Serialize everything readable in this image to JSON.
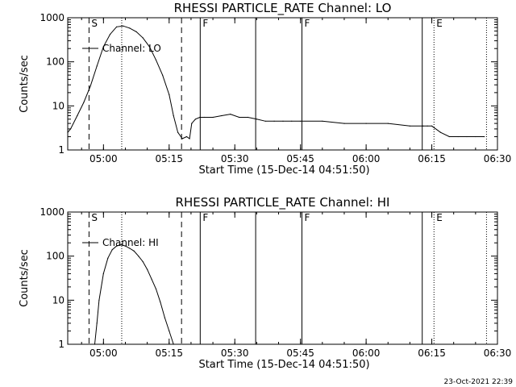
{
  "chart_data": [
    {
      "type": "line",
      "title": "RHESSI PARTICLE_RATE Channel: LO",
      "xlabel": "Start Time (15-Dec-14 04:51:50)",
      "ylabel": "Counts/sec",
      "yscale": "log",
      "ylim": [
        1,
        1000
      ],
      "xlim": [
        "04:51:50",
        "06:30:00"
      ],
      "x_ticks": [
        "05:00",
        "05:15",
        "05:30",
        "05:45",
        "06:00",
        "06:15",
        "06:30"
      ],
      "y_ticks": [
        "1",
        "10",
        "100",
        "1000"
      ],
      "legend": {
        "label": "Channel: LO",
        "placement": "top-left"
      },
      "markers": [
        {
          "letter": "S",
          "time": "04:56:42",
          "style": "dashed"
        },
        {
          "letter": "",
          "time": "05:04:10",
          "style": "dotted"
        },
        {
          "letter": "",
          "time": "05:17:50",
          "style": "dashed"
        },
        {
          "letter": "F",
          "time": "05:22:06",
          "style": "solid"
        },
        {
          "letter": "",
          "time": "05:34:46",
          "style": "solid"
        },
        {
          "letter": "F",
          "time": "05:45:20",
          "style": "solid"
        },
        {
          "letter": "",
          "time": "06:12:49",
          "style": "solid"
        },
        {
          "letter": "E",
          "time": "06:15:30",
          "style": "dotted"
        },
        {
          "letter": "",
          "time": "06:27:30",
          "style": "dotted"
        }
      ],
      "series": [
        {
          "name": "Channel: LO",
          "x": [
            "04:51:50",
            "04:52:30",
            "04:54:00",
            "04:55:30",
            "04:57:00",
            "04:58:30",
            "05:00:00",
            "05:01:30",
            "05:03:00",
            "05:04:30",
            "05:06:00",
            "05:07:30",
            "05:09:00",
            "05:10:30",
            "05:12:00",
            "05:13:30",
            "05:15:00",
            "05:16:00",
            "05:17:00",
            "05:18:00",
            "05:19:00",
            "05:19:40",
            "05:20:10",
            "05:21:00",
            "05:22:00",
            "05:23:00",
            "05:25:00",
            "05:27:00",
            "05:29:00",
            "05:31:00",
            "05:33:00",
            "05:35:00",
            "05:37:00",
            "05:39:00",
            "05:41:00",
            "05:43:00",
            "05:45:00",
            "05:50:00",
            "05:55:00",
            "06:00:00",
            "06:05:00",
            "06:10:00",
            "06:13:00",
            "06:14:00",
            "06:15:00",
            "06:17:00",
            "06:19:00",
            "06:21:00",
            "06:23:00",
            "06:25:00",
            "06:27:00"
          ],
          "y": [
            2.5,
            3,
            6,
            12,
            28,
            80,
            220,
            420,
            620,
            650,
            580,
            480,
            350,
            220,
            110,
            50,
            18,
            6,
            2.5,
            1.8,
            2,
            1.8,
            4,
            5,
            5.5,
            5.5,
            5.5,
            6,
            6.5,
            5.5,
            5.5,
            5,
            4.5,
            4.5,
            4.5,
            4.5,
            4.5,
            4.5,
            4,
            4,
            4,
            3.5,
            3.5,
            3.5,
            3.5,
            2.5,
            2,
            2,
            2,
            2,
            2
          ]
        }
      ]
    },
    {
      "type": "line",
      "title": "RHESSI PARTICLE_RATE Channel: HI",
      "xlabel": "Start Time (15-Dec-14 04:51:50)",
      "ylabel": "Counts/sec",
      "yscale": "log",
      "ylim": [
        1,
        1000
      ],
      "xlim": [
        "04:51:50",
        "06:30:00"
      ],
      "x_ticks": [
        "05:00",
        "05:15",
        "05:30",
        "05:45",
        "06:00",
        "06:15",
        "06:30"
      ],
      "y_ticks": [
        "1",
        "10",
        "100",
        "1000"
      ],
      "legend": {
        "label": "Channel: HI",
        "placement": "top-left"
      },
      "markers": [
        {
          "letter": "S",
          "time": "04:56:42",
          "style": "dashed"
        },
        {
          "letter": "",
          "time": "05:04:10",
          "style": "dotted"
        },
        {
          "letter": "",
          "time": "05:17:50",
          "style": "dashed"
        },
        {
          "letter": "F",
          "time": "05:22:06",
          "style": "solid"
        },
        {
          "letter": "",
          "time": "05:34:46",
          "style": "solid"
        },
        {
          "letter": "F",
          "time": "05:45:20",
          "style": "solid"
        },
        {
          "letter": "",
          "time": "06:12:49",
          "style": "solid"
        },
        {
          "letter": "E",
          "time": "06:15:30",
          "style": "dotted"
        },
        {
          "letter": "",
          "time": "06:27:30",
          "style": "dotted"
        }
      ],
      "series": [
        {
          "name": "Channel: HI",
          "x": [
            "04:58:00",
            "04:58:30",
            "04:59:00",
            "05:00:00",
            "05:01:00",
            "05:02:00",
            "05:03:00",
            "05:04:00",
            "05:05:00",
            "05:06:00",
            "05:07:00",
            "05:08:00",
            "05:09:00",
            "05:10:00",
            "05:11:00",
            "05:12:00",
            "05:13:00",
            "05:14:00",
            "05:15:00",
            "05:16:00"
          ],
          "y": [
            1,
            3,
            10,
            40,
            90,
            140,
            170,
            180,
            170,
            150,
            130,
            100,
            75,
            50,
            30,
            18,
            9,
            4,
            2,
            1
          ]
        }
      ]
    }
  ],
  "footer": {
    "timestamp": "23-Oct-2021 22:39"
  }
}
